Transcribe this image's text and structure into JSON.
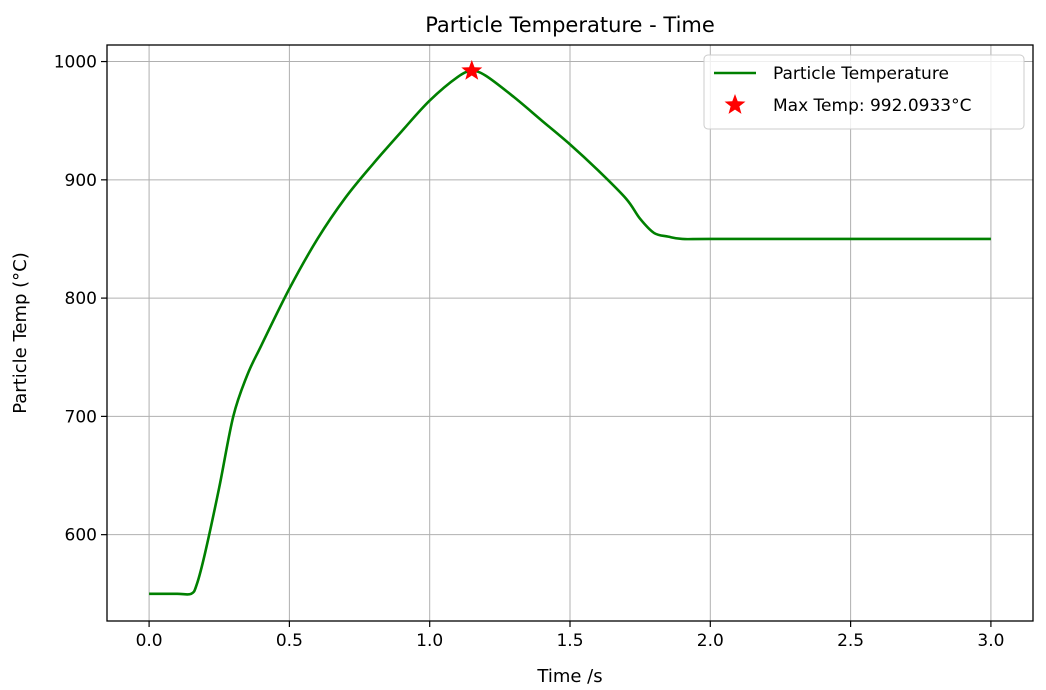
{
  "chart_data": {
    "type": "line",
    "title": "Particle Temperature - Time",
    "xlabel": "Time /s",
    "ylabel": "Particle Temp (°C)",
    "xlim": [
      -0.15,
      3.15
    ],
    "ylim": [
      527,
      1014
    ],
    "grid": true,
    "legend_position": "top-right",
    "x_ticks": [
      0.0,
      0.5,
      1.0,
      1.5,
      2.0,
      2.5,
      3.0
    ],
    "x_tick_labels": [
      "0.0",
      "0.5",
      "1.0",
      "1.5",
      "2.0",
      "2.5",
      "3.0"
    ],
    "y_ticks": [
      600,
      700,
      800,
      900,
      1000
    ],
    "y_tick_labels": [
      "600",
      "700",
      "800",
      "900",
      "1000"
    ],
    "colors": {
      "line": "#008000",
      "marker": "#ff0000",
      "grid": "#b0b0b0"
    },
    "series": [
      {
        "name": "Particle Temperature",
        "x": [
          0.0,
          0.1,
          0.15,
          0.17,
          0.2,
          0.25,
          0.3,
          0.35,
          0.4,
          0.5,
          0.6,
          0.7,
          0.8,
          0.9,
          1.0,
          1.1,
          1.15,
          1.2,
          1.3,
          1.4,
          1.5,
          1.6,
          1.7,
          1.75,
          1.8,
          1.85,
          1.9,
          2.0,
          2.5,
          3.0
        ],
        "y": [
          550,
          550,
          550,
          558,
          585,
          640,
          700,
          735,
          760,
          808,
          850,
          885,
          914,
          941,
          967,
          987,
          992,
          988,
          970,
          950,
          930,
          908,
          884,
          867,
          855,
          852,
          850,
          850,
          850,
          850
        ]
      }
    ],
    "max_point": {
      "x": 1.15,
      "y": 992.0933,
      "label": "Max Temp: 992.0933°C"
    }
  }
}
